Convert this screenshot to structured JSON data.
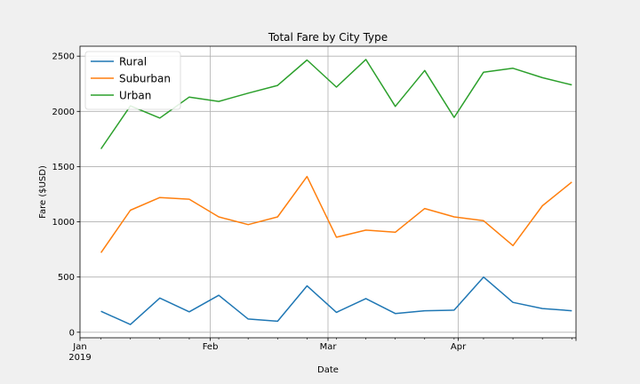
{
  "chart_data": {
    "type": "line",
    "title": "Total Fare by City Type",
    "xlabel": "Date",
    "ylabel": "Fare ($USD)",
    "x": [
      "2019-01-06",
      "2019-01-13",
      "2019-01-20",
      "2019-01-27",
      "2019-02-03",
      "2019-02-10",
      "2019-02-17",
      "2019-02-24",
      "2019-03-03",
      "2019-03-10",
      "2019-03-17",
      "2019-03-24",
      "2019-03-31",
      "2019-04-07",
      "2019-04-14",
      "2019-04-21",
      "2019-04-28"
    ],
    "xlim": [
      "2019-01-01",
      "2019-04-29"
    ],
    "ylim": [
      -50,
      2590
    ],
    "x_ticks": [
      {
        "date": "2019-01-01",
        "label": "Jan",
        "sublabel": "2019"
      },
      {
        "date": "2019-02-01",
        "label": "Feb"
      },
      {
        "date": "2019-03-01",
        "label": "Mar"
      },
      {
        "date": "2019-04-01",
        "label": "Apr"
      }
    ],
    "y_ticks": [
      0,
      500,
      1000,
      1500,
      2000,
      2500
    ],
    "grid": true,
    "legend": "top-left",
    "series": [
      {
        "name": "Rural",
        "color": "#1f77b4",
        "values": [
          190,
          70,
          310,
          185,
          335,
          120,
          100,
          420,
          180,
          305,
          170,
          195,
          200,
          500,
          270,
          215,
          195
        ]
      },
      {
        "name": "Suburban",
        "color": "#ff7f0e",
        "values": [
          720,
          1105,
          1220,
          1205,
          1045,
          975,
          1045,
          1410,
          860,
          925,
          905,
          1120,
          1045,
          1010,
          785,
          1145,
          1360
        ]
      },
      {
        "name": "Urban",
        "color": "#2ca02c",
        "values": [
          1660,
          2050,
          1940,
          2130,
          2090,
          2165,
          2235,
          2465,
          2220,
          2470,
          2045,
          2370,
          1945,
          2355,
          2390,
          2305,
          2240
        ]
      }
    ]
  }
}
